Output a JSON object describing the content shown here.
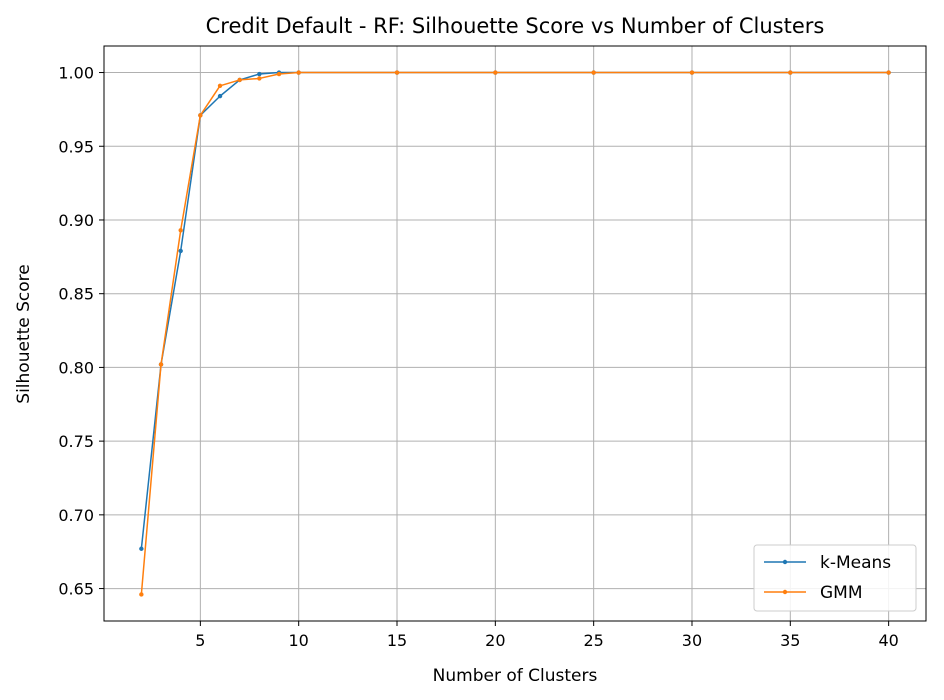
{
  "chart_data": {
    "type": "line",
    "title": "Credit Default - RF: Silhouette Score vs Number of Clusters",
    "xlabel": "Number of Clusters",
    "ylabel": "Silhouette Score",
    "xlim": [
      0.1,
      41.9
    ],
    "ylim": [
      0.628,
      1.018
    ],
    "xticks": [
      5,
      10,
      15,
      20,
      25,
      30,
      35,
      40
    ],
    "yticks": [
      0.65,
      0.7,
      0.75,
      0.8,
      0.85,
      0.9,
      0.95,
      1.0
    ],
    "xtick_labels": [
      "5",
      "10",
      "15",
      "20",
      "25",
      "30",
      "35",
      "40"
    ],
    "ytick_labels": [
      "0.65",
      "0.70",
      "0.75",
      "0.80",
      "0.85",
      "0.90",
      "0.95",
      "1.00"
    ],
    "grid": true,
    "legend_position": "lower-right",
    "x": [
      2,
      3,
      4,
      5,
      6,
      7,
      8,
      9,
      10,
      15,
      20,
      25,
      30,
      35,
      40
    ],
    "series": [
      {
        "name": "k-Means",
        "color": "#1f77b4",
        "values": [
          0.677,
          0.802,
          0.879,
          0.971,
          0.984,
          0.995,
          0.999,
          1.0,
          1.0,
          1.0,
          1.0,
          1.0,
          1.0,
          1.0,
          1.0
        ]
      },
      {
        "name": "GMM",
        "color": "#ff7f0e",
        "values": [
          0.646,
          0.802,
          0.893,
          0.971,
          0.991,
          0.995,
          0.996,
          0.999,
          1.0,
          1.0,
          1.0,
          1.0,
          1.0,
          1.0,
          1.0
        ]
      }
    ]
  }
}
